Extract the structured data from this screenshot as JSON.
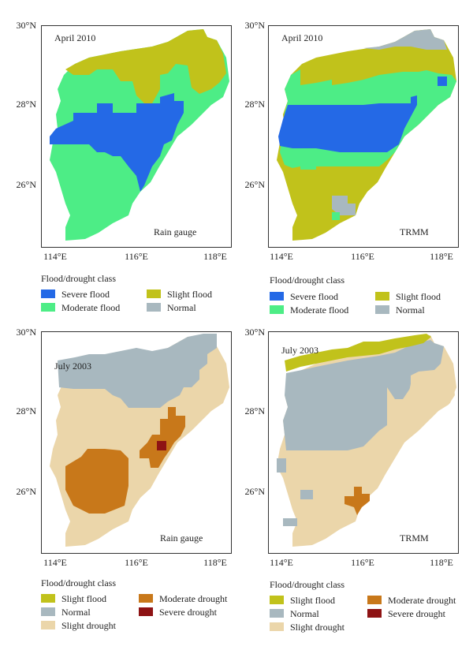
{
  "colors": {
    "severe_flood": "#2469e6",
    "moderate_flood": "#4ded86",
    "slight_flood": "#c1c21b",
    "normal": "#a8b8bf",
    "slight_drought": "#ebd6aa",
    "moderate_drought": "#c8781a",
    "severe_drought": "#8e1314"
  },
  "axes": {
    "y_ticks": [
      "30°N",
      "28°N",
      "26°N"
    ],
    "x_ticks": [
      "114°E",
      "116°E",
      "118°E"
    ]
  },
  "legend_title": "Flood/drought class",
  "panels": [
    {
      "id": "a",
      "period": "April 2010",
      "source": "Rain gauge",
      "legend": [
        {
          "label": "Severe flood",
          "class": "severe_flood"
        },
        {
          "label": "Slight flood",
          "class": "slight_flood"
        },
        {
          "label": "Moderate flood",
          "class": "moderate_flood"
        },
        {
          "label": "Normal",
          "class": "normal"
        }
      ]
    },
    {
      "id": "b",
      "period": "April 2010",
      "source": "TRMM",
      "legend": [
        {
          "label": "Severe flood",
          "class": "severe_flood"
        },
        {
          "label": "Slight flood",
          "class": "slight_flood"
        },
        {
          "label": "Moderate flood",
          "class": "moderate_flood"
        },
        {
          "label": "Normal",
          "class": "normal"
        }
      ]
    },
    {
      "id": "c",
      "period": "July 2003",
      "source": "Rain gauge",
      "legend": [
        {
          "label": "Slight flood",
          "class": "slight_flood"
        },
        {
          "label": "Moderate drought",
          "class": "moderate_drought"
        },
        {
          "label": "Normal",
          "class": "normal"
        },
        {
          "label": "Severe drought",
          "class": "severe_drought"
        },
        {
          "label": "Slight drought",
          "class": "slight_drought"
        }
      ]
    },
    {
      "id": "d",
      "period": "July 2003",
      "source": "TRMM",
      "legend": [
        {
          "label": "Slight flood",
          "class": "slight_flood"
        },
        {
          "label": "Moderate drought",
          "class": "moderate_drought"
        },
        {
          "label": "Normal",
          "class": "normal"
        },
        {
          "label": "Severe drought",
          "class": "severe_drought"
        },
        {
          "label": "Slight drought",
          "class": "slight_drought"
        }
      ]
    }
  ]
}
